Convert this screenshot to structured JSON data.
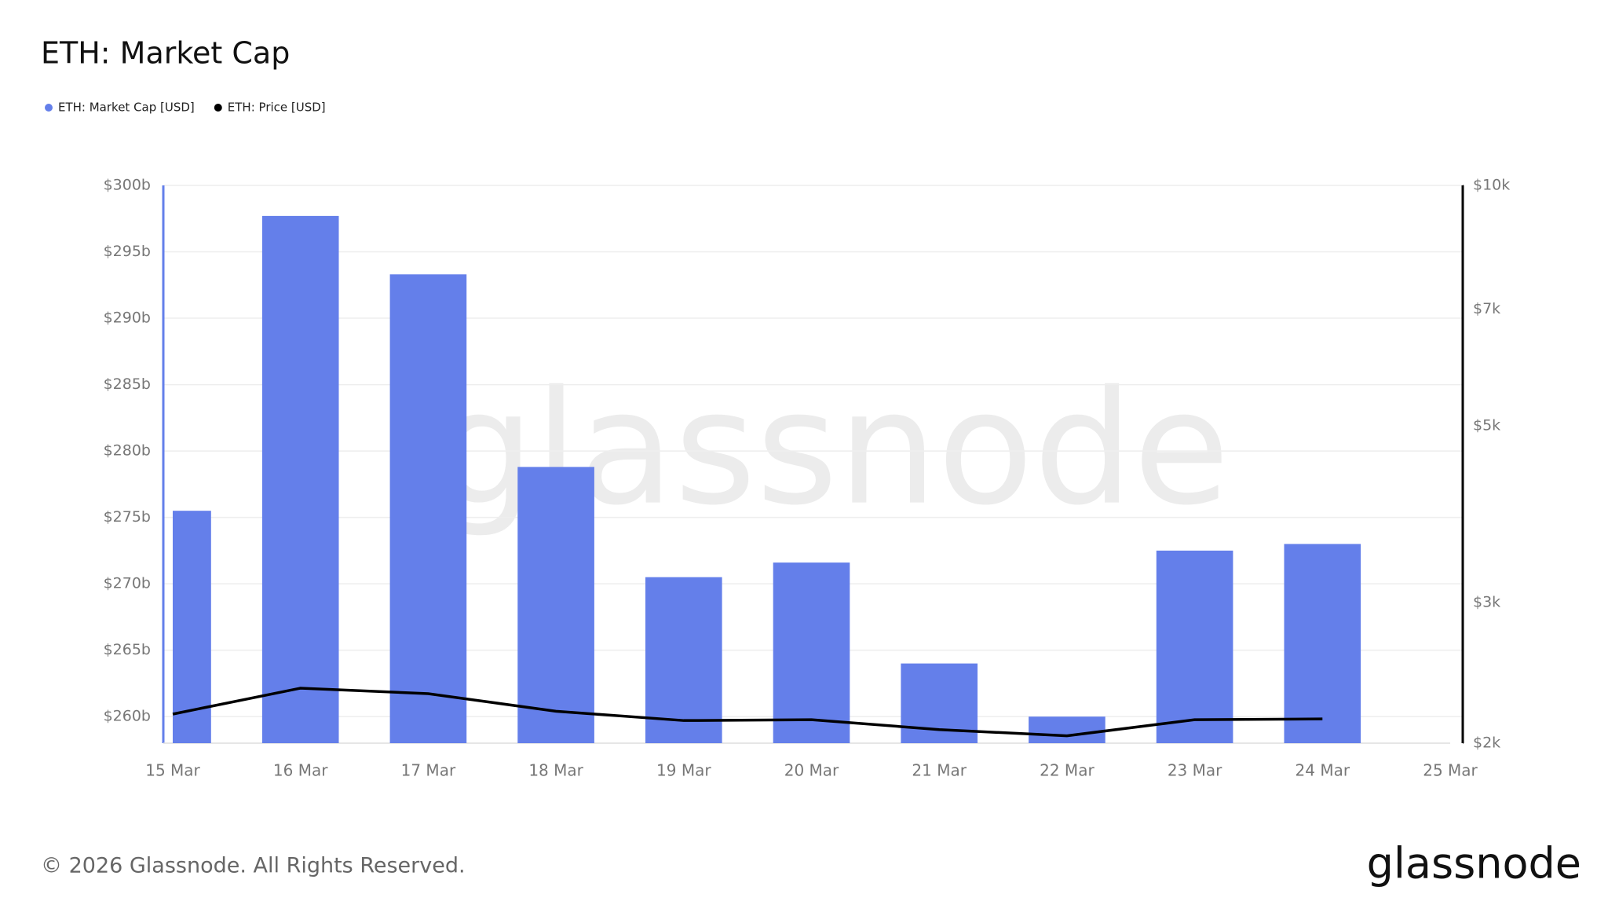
{
  "chart_data": {
    "type": "bar",
    "title": "ETH: Market Cap",
    "categories": [
      "15 Mar",
      "16 Mar",
      "17 Mar",
      "18 Mar",
      "19 Mar",
      "20 Mar",
      "21 Mar",
      "22 Mar",
      "23 Mar",
      "24 Mar",
      "25 Mar"
    ],
    "series": [
      {
        "name": "ETH: Market Cap [USD]",
        "color": "#647fea",
        "type": "bar",
        "axis": "y",
        "values": [
          275.5,
          297.7,
          293.3,
          278.8,
          270.5,
          271.6,
          264.0,
          260.0,
          272.5,
          273.0,
          null
        ]
      },
      {
        "name": "ETH: Price [USD]",
        "color": "#000000",
        "type": "line",
        "axis": "y2",
        "values": [
          2175,
          2344,
          2307,
          2193,
          2135,
          2140,
          2080,
          2043,
          2140,
          2145,
          null
        ]
      }
    ],
    "ylim": [
      258,
      300
    ],
    "yticks": [
      {
        "value": 260,
        "label": "$260b"
      },
      {
        "value": 265,
        "label": "$265b"
      },
      {
        "value": 270,
        "label": "$270b"
      },
      {
        "value": 275,
        "label": "$275b"
      },
      {
        "value": 280,
        "label": "$280b"
      },
      {
        "value": 285,
        "label": "$285b"
      },
      {
        "value": 290,
        "label": "$290b"
      },
      {
        "value": 295,
        "label": "$295b"
      },
      {
        "value": 300,
        "label": "$300b"
      }
    ],
    "y2lim": [
      2000,
      10000
    ],
    "y2log": true,
    "y2ticks": [
      {
        "value": 2000,
        "label": "$2k"
      },
      {
        "value": 3000,
        "label": "$3k"
      },
      {
        "value": 5000,
        "label": "$5k"
      },
      {
        "value": 7000,
        "label": "$7k"
      },
      {
        "value": 10000,
        "label": "$10k"
      }
    ],
    "grid": true,
    "legend": "top-left",
    "watermark": "glassnode"
  },
  "footer": {
    "copyright": "© 2026 Glassnode. All Rights Reserved.",
    "logo": "glassnode"
  }
}
